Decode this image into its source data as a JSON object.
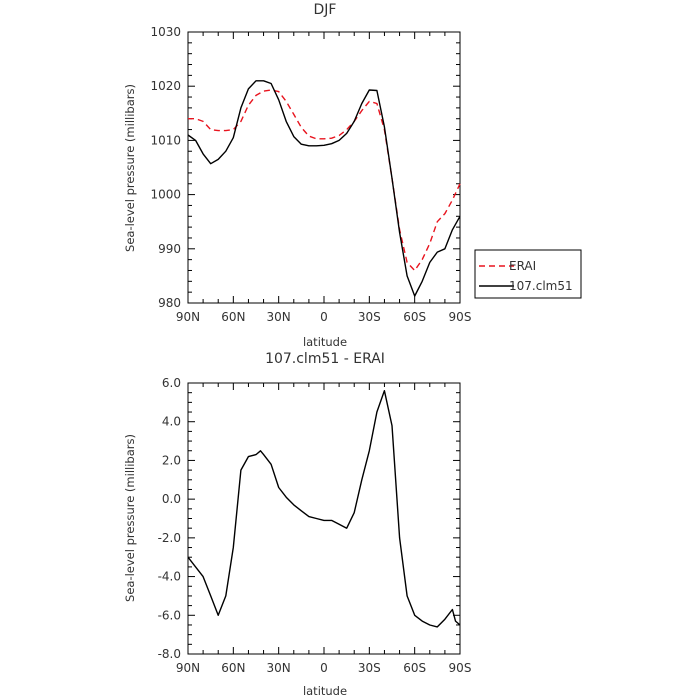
{
  "chart_data": [
    {
      "type": "line",
      "title": "DJF",
      "xlabel": "latitude",
      "ylabel": "Sea-level pressure (millibars)",
      "xlim": [
        90,
        -90
      ],
      "ylim": [
        980,
        1030
      ],
      "x_ticks": [
        90,
        60,
        30,
        0,
        -30,
        -60,
        -90
      ],
      "x_tick_labels": [
        "90N",
        "60N",
        "30N",
        "0",
        "30S",
        "60S",
        "90S"
      ],
      "y_ticks": [
        980,
        990,
        1000,
        1010,
        1020,
        1030
      ],
      "y_tick_labels": [
        "980",
        "990",
        "1000",
        "1010",
        "1020",
        "1030"
      ],
      "grid": false,
      "legend_position": "outside-right-bottom",
      "series": [
        {
          "name": "ERAI",
          "color": "#e8141e",
          "dash": "dashed",
          "x": [
            90,
            85,
            80,
            75,
            70,
            65,
            60,
            55,
            50,
            45,
            40,
            35,
            30,
            25,
            20,
            15,
            10,
            5,
            0,
            -5,
            -10,
            -15,
            -20,
            -25,
            -30,
            -35,
            -40,
            -45,
            -50,
            -55,
            -60,
            -65,
            -70,
            -75,
            -80,
            -85,
            -90
          ],
          "y": [
            1014,
            1014,
            1013.5,
            1012,
            1011.8,
            1011.8,
            1012,
            1013.5,
            1016.5,
            1018.3,
            1019.1,
            1019.3,
            1019,
            1017.2,
            1014.8,
            1012.4,
            1010.8,
            1010.3,
            1010.3,
            1010.4,
            1010.9,
            1012,
            1013.5,
            1015.5,
            1017.2,
            1016.8,
            1012,
            1003,
            993.5,
            987.5,
            986,
            988,
            991,
            995,
            996.5,
            999,
            1002
          ]
        },
        {
          "name": "107.clm51",
          "color": "#000000",
          "dash": "solid",
          "x": [
            90,
            85,
            80,
            75,
            70,
            65,
            60,
            55,
            50,
            45,
            40,
            35,
            30,
            25,
            20,
            15,
            10,
            5,
            0,
            -5,
            -10,
            -15,
            -20,
            -25,
            -30,
            -35,
            -40,
            -45,
            -50,
            -55,
            -60,
            -65,
            -70,
            -75,
            -80,
            -85,
            -90
          ],
          "y": [
            1011,
            1010,
            1007.5,
            1005.7,
            1006.5,
            1008,
            1010.5,
            1016,
            1019.5,
            1021,
            1021,
            1020.5,
            1017.5,
            1013.5,
            1010.7,
            1009.3,
            1009,
            1009,
            1009.1,
            1009.4,
            1010,
            1011.3,
            1013.5,
            1016.8,
            1019.3,
            1019.2,
            1012.5,
            1003,
            993,
            985,
            981.3,
            984,
            987.5,
            989.4,
            990,
            993.5,
            996
          ]
        }
      ]
    },
    {
      "type": "line",
      "title": "107.clm51 - ERAI",
      "xlabel": "latitude",
      "ylabel": "Sea-level pressure (millibars)",
      "xlim": [
        90,
        -90
      ],
      "ylim": [
        -8,
        6
      ],
      "x_ticks": [
        90,
        60,
        30,
        0,
        -30,
        -60,
        -90
      ],
      "x_tick_labels": [
        "90N",
        "60N",
        "30N",
        "0",
        "30S",
        "60S",
        "90S"
      ],
      "y_ticks": [
        -8,
        -6,
        -4,
        -2,
        0,
        2,
        4,
        6
      ],
      "y_tick_labels": [
        "-8.0",
        "-6.0",
        "-4.0",
        "-2.0",
        "0.0",
        "2.0",
        "4.0",
        "6.0"
      ],
      "grid": false,
      "series": [
        {
          "color": "#000000",
          "dash": "solid",
          "x": [
            90,
            85,
            80,
            75,
            70,
            65,
            60,
            55,
            50,
            45,
            42,
            40,
            35,
            30,
            25,
            20,
            15,
            10,
            5,
            0,
            -5,
            -10,
            -15,
            -20,
            -25,
            -30,
            -35,
            -40,
            -45,
            -50,
            -55,
            -60,
            -65,
            -70,
            -75,
            -80,
            -85,
            -87,
            -90
          ],
          "y": [
            -3,
            -3.5,
            -4,
            -5,
            -6,
            -5,
            -2.5,
            1.5,
            2.2,
            2.3,
            2.5,
            2.3,
            1.8,
            0.6,
            0.1,
            -0.3,
            -0.6,
            -0.9,
            -1,
            -1.1,
            -1.1,
            -1.3,
            -1.5,
            -0.7,
            1,
            2.5,
            4.5,
            5.6,
            3.8,
            -2,
            -5,
            -6,
            -6.3,
            -6.5,
            -6.6,
            -6.2,
            -5.7,
            -6.3,
            -6.5
          ]
        }
      ]
    }
  ]
}
